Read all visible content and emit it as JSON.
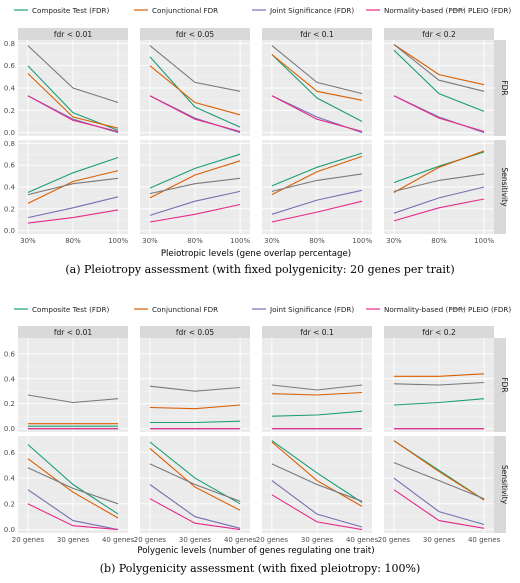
{
  "captions": {
    "a": "(a) Pleiotropy assessment (with fixed polygenicity: 20 genes per trait)",
    "b": "(b) Polygenicity assessment (with fixed pleiotropy: 100%)"
  },
  "colors": {
    "Composite Test (FDR)": "#1b9e77",
    "Conjunctional FDR": "#d95f02",
    "Joint Significance (FDR)": "#7570b3",
    "Normality-based (FDR)": "#e7298a",
    "PLEIO (FDR)": "#7a7a7a"
  },
  "chart_data": [
    {
      "type": "line",
      "legend": [
        "Composite Test (FDR)",
        "Conjunctional FDR",
        "Joint Significance (FDR)",
        "Normality-based (FDR)",
        "PLEIO (FDR)"
      ],
      "legend_position": "top",
      "panel_titles": [
        "fdr < 0.01",
        "fdr < 0.05",
        "fdr < 0.1",
        "fdr < 0.2"
      ],
      "row_labels": [
        "FDR",
        "Sensitivity"
      ],
      "categories": [
        "30%",
        "80%",
        "100%"
      ],
      "xlabel": "Pleiotropic levels (gene overlap percentage)",
      "ylim": [
        0,
        0.8
      ],
      "yticks": [
        "0.0",
        "0.2",
        "0.4",
        "0.6",
        "0.8"
      ],
      "grid": true,
      "rows": [
        [
          {
            "Composite Test (FDR)": [
              0.6,
              0.18,
              0.02
            ],
            "Conjunctional FDR": [
              0.53,
              0.14,
              0.04
            ],
            "Joint Significance (FDR)": [
              0.33,
              0.12,
              0.0
            ],
            "Normality-based (FDR)": [
              0.33,
              0.11,
              0.01
            ],
            "PLEIO (FDR)": [
              0.78,
              0.4,
              0.27
            ]
          },
          {
            "Composite Test (FDR)": [
              0.68,
              0.23,
              0.05
            ],
            "Conjunctional FDR": [
              0.6,
              0.27,
              0.16
            ],
            "Joint Significance (FDR)": [
              0.33,
              0.13,
              0.0
            ],
            "Normality-based (FDR)": [
              0.33,
              0.12,
              0.01
            ],
            "PLEIO (FDR)": [
              0.78,
              0.45,
              0.37
            ]
          },
          {
            "Composite Test (FDR)": [
              0.7,
              0.31,
              0.1
            ],
            "Conjunctional FDR": [
              0.7,
              0.37,
              0.29
            ],
            "Joint Significance (FDR)": [
              0.33,
              0.14,
              0.0
            ],
            "Normality-based (FDR)": [
              0.33,
              0.12,
              0.01
            ],
            "PLEIO (FDR)": [
              0.78,
              0.45,
              0.35
            ]
          },
          {
            "Composite Test (FDR)": [
              0.74,
              0.35,
              0.19
            ],
            "Conjunctional FDR": [
              0.79,
              0.52,
              0.43
            ],
            "Joint Significance (FDR)": [
              0.33,
              0.14,
              0.0
            ],
            "Normality-based (FDR)": [
              0.33,
              0.13,
              0.01
            ],
            "PLEIO (FDR)": [
              0.79,
              0.47,
              0.37
            ]
          }
        ],
        [
          {
            "Composite Test (FDR)": [
              0.35,
              0.53,
              0.67
            ],
            "Conjunctional FDR": [
              0.25,
              0.45,
              0.55
            ],
            "Joint Significance (FDR)": [
              0.12,
              0.21,
              0.31
            ],
            "Normality-based (FDR)": [
              0.07,
              0.12,
              0.19
            ],
            "PLEIO (FDR)": [
              0.33,
              0.43,
              0.48
            ]
          },
          {
            "Composite Test (FDR)": [
              0.39,
              0.57,
              0.7
            ],
            "Conjunctional FDR": [
              0.3,
              0.51,
              0.64
            ],
            "Joint Significance (FDR)": [
              0.14,
              0.27,
              0.36
            ],
            "Normality-based (FDR)": [
              0.08,
              0.15,
              0.24
            ],
            "PLEIO (FDR)": [
              0.34,
              0.43,
              0.48
            ]
          },
          {
            "Composite Test (FDR)": [
              0.41,
              0.58,
              0.71
            ],
            "Conjunctional FDR": [
              0.33,
              0.54,
              0.68
            ],
            "Joint Significance (FDR)": [
              0.15,
              0.28,
              0.37
            ],
            "Normality-based (FDR)": [
              0.08,
              0.17,
              0.27
            ],
            "PLEIO (FDR)": [
              0.36,
              0.46,
              0.52
            ]
          },
          {
            "Composite Test (FDR)": [
              0.44,
              0.59,
              0.72
            ],
            "Conjunctional FDR": [
              0.35,
              0.58,
              0.73
            ],
            "Joint Significance (FDR)": [
              0.16,
              0.3,
              0.4
            ],
            "Normality-based (FDR)": [
              0.09,
              0.21,
              0.29
            ],
            "PLEIO (FDR)": [
              0.36,
              0.46,
              0.52
            ]
          }
        ]
      ]
    },
    {
      "type": "line",
      "legend": [
        "Composite Test (FDR)",
        "Conjunctional FDR",
        "Joint Significance (FDR)",
        "Normality-based (FDR)",
        "PLEIO (FDR)"
      ],
      "legend_position": "top",
      "panel_titles": [
        "fdr < 0.01",
        "fdr < 0.05",
        "fdr < 0.1",
        "fdr < 0.2"
      ],
      "row_labels": [
        "FDR",
        "Sensitivity"
      ],
      "categories": [
        "20 genes",
        "30 genes",
        "40 genes"
      ],
      "xlabel": "Polygenic levels (number of genes regulating one trait)",
      "ylim": [
        0,
        0.7
      ],
      "yticks": [
        "0.0",
        "0.2",
        "0.4",
        "0.6"
      ],
      "grid": true,
      "rows": [
        [
          {
            "Composite Test (FDR)": [
              0.02,
              0.02,
              0.02
            ],
            "Conjunctional FDR": [
              0.04,
              0.04,
              0.04
            ],
            "Joint Significance (FDR)": [
              0.0,
              0.0,
              0.0
            ],
            "Normality-based (FDR)": [
              0.0,
              0.0,
              0.0
            ],
            "PLEIO (FDR)": [
              0.27,
              0.21,
              0.24
            ]
          },
          {
            "Composite Test (FDR)": [
              0.05,
              0.05,
              0.06
            ],
            "Conjunctional FDR": [
              0.17,
              0.16,
              0.19
            ],
            "Joint Significance (FDR)": [
              0.0,
              0.0,
              0.0
            ],
            "Normality-based (FDR)": [
              0.0,
              0.0,
              0.0
            ],
            "PLEIO (FDR)": [
              0.34,
              0.3,
              0.33
            ]
          },
          {
            "Composite Test (FDR)": [
              0.1,
              0.11,
              0.14
            ],
            "Conjunctional FDR": [
              0.28,
              0.27,
              0.29
            ],
            "Joint Significance (FDR)": [
              0.0,
              0.0,
              0.0
            ],
            "Normality-based (FDR)": [
              0.0,
              0.0,
              0.0
            ],
            "PLEIO (FDR)": [
              0.35,
              0.31,
              0.35
            ]
          },
          {
            "Composite Test (FDR)": [
              0.19,
              0.21,
              0.24
            ],
            "Conjunctional FDR": [
              0.42,
              0.42,
              0.44
            ],
            "Joint Significance (FDR)": [
              0.0,
              0.0,
              0.0
            ],
            "Normality-based (FDR)": [
              0.0,
              0.0,
              0.0
            ],
            "PLEIO (FDR)": [
              0.36,
              0.35,
              0.37
            ]
          }
        ],
        [
          {
            "Composite Test (FDR)": [
              0.66,
              0.35,
              0.12
            ],
            "Conjunctional FDR": [
              0.55,
              0.29,
              0.09
            ],
            "Joint Significance (FDR)": [
              0.31,
              0.07,
              0.0
            ],
            "Normality-based (FDR)": [
              0.2,
              0.03,
              0.0
            ],
            "PLEIO (FDR)": [
              0.48,
              0.32,
              0.2
            ]
          },
          {
            "Composite Test (FDR)": [
              0.68,
              0.4,
              0.2
            ],
            "Conjunctional FDR": [
              0.63,
              0.33,
              0.15
            ],
            "Joint Significance (FDR)": [
              0.35,
              0.1,
              0.01
            ],
            "Normality-based (FDR)": [
              0.24,
              0.05,
              0.0
            ],
            "PLEIO (FDR)": [
              0.51,
              0.35,
              0.22
            ]
          },
          {
            "Composite Test (FDR)": [
              0.69,
              0.44,
              0.21
            ],
            "Conjunctional FDR": [
              0.68,
              0.38,
              0.18
            ],
            "Joint Significance (FDR)": [
              0.38,
              0.12,
              0.02
            ],
            "Normality-based (FDR)": [
              0.27,
              0.06,
              0.0
            ],
            "PLEIO (FDR)": [
              0.51,
              0.35,
              0.22
            ]
          },
          {
            "Composite Test (FDR)": [
              0.69,
              0.46,
              0.23
            ],
            "Conjunctional FDR": [
              0.69,
              0.45,
              0.23
            ],
            "Joint Significance (FDR)": [
              0.4,
              0.14,
              0.04
            ],
            "Normality-based (FDR)": [
              0.31,
              0.07,
              0.01
            ],
            "PLEIO (FDR)": [
              0.52,
              0.38,
              0.24
            ]
          }
        ]
      ]
    }
  ]
}
